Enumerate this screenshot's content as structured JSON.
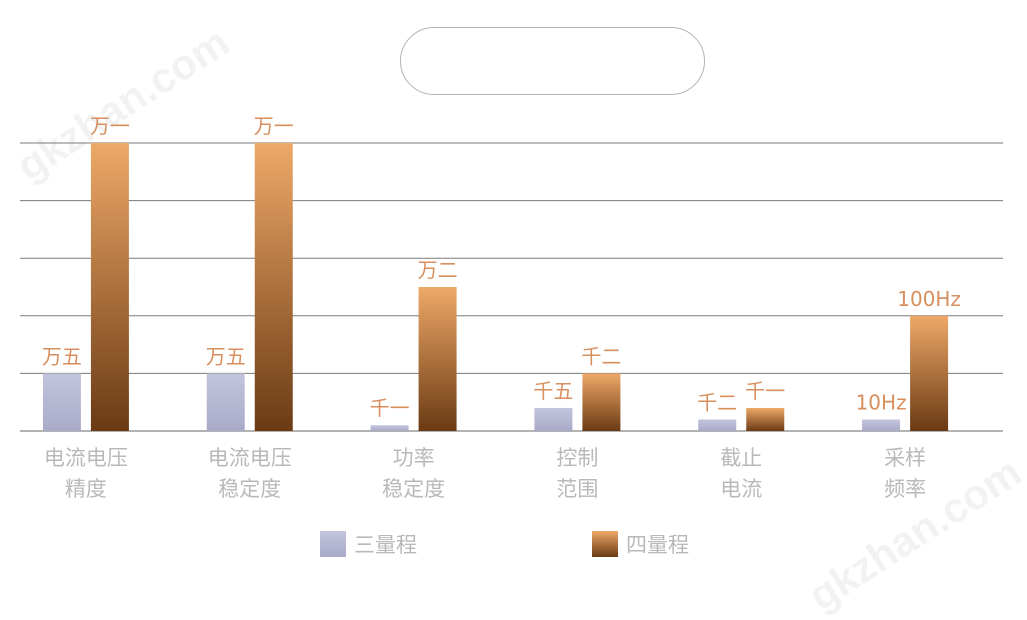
{
  "watermark": "gkzhan.com",
  "chart_data": {
    "type": "bar",
    "title": "",
    "xlabel": "",
    "ylabel": "",
    "ylim": [
      0,
      5
    ],
    "grid": true,
    "legend_position": "bottom",
    "categories": [
      [
        "电流电压",
        "精度"
      ],
      [
        "电流电压",
        "稳定度"
      ],
      [
        "功率",
        "稳定度"
      ],
      [
        "控制",
        "范围"
      ],
      [
        "截止",
        "电流"
      ],
      [
        "采样",
        "频率"
      ]
    ],
    "series": [
      {
        "name": "三量程",
        "values": [
          1,
          1,
          0.1,
          0.4,
          0.2,
          0.2
        ],
        "labels": [
          "万五",
          "万五",
          "千一",
          "千五",
          "千二",
          "10Hz"
        ],
        "color_top": "#c3c5de",
        "color_bottom": "#a8aac8"
      },
      {
        "name": "四量程",
        "values": [
          5,
          5,
          2.5,
          1,
          0.4,
          2
        ],
        "labels": [
          "万一",
          "万一",
          "万二",
          "千二",
          "千一",
          "100Hz"
        ],
        "color_top": "#eea968",
        "color_bottom": "#6a3a14"
      }
    ],
    "colors": {
      "axis_label": "#b9b9b9",
      "data_label": "#d88f5e",
      "gridline": "#7a7a7a"
    }
  }
}
